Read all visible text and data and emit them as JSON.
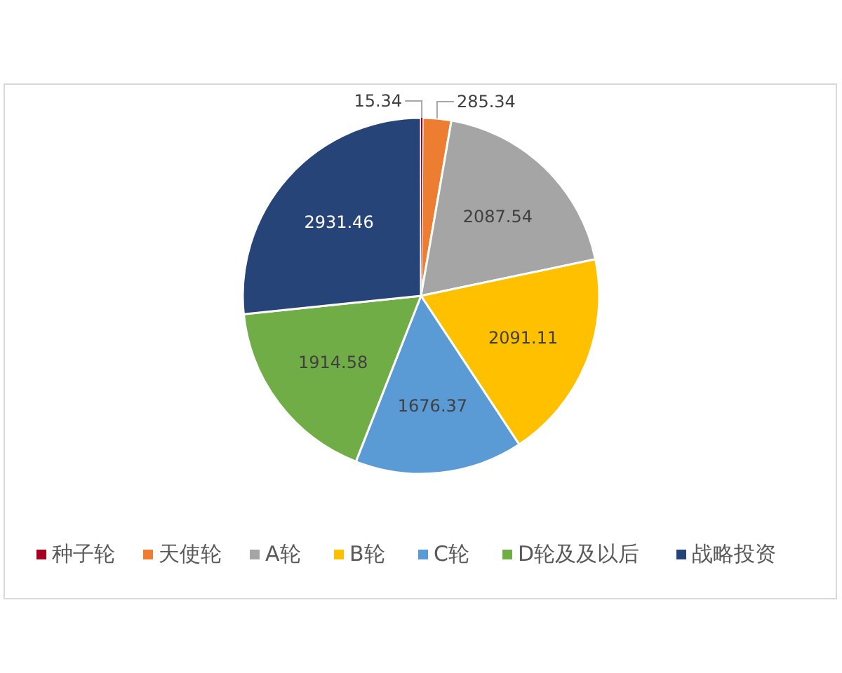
{
  "chart_data": {
    "type": "pie",
    "categories": [
      "种子轮",
      "天使轮",
      "A轮",
      "B轮",
      "C轮",
      "D轮及及以后",
      "战略投资"
    ],
    "values": [
      15.34,
      285.34,
      2087.54,
      2091.11,
      1676.37,
      1914.58,
      2931.46
    ],
    "colors": [
      "#a50021",
      "#ed7d31",
      "#a5a5a5",
      "#ffc000",
      "#5b9bd5",
      "#70ad47",
      "#264478"
    ],
    "data_labels": true,
    "legend": "bottom"
  }
}
